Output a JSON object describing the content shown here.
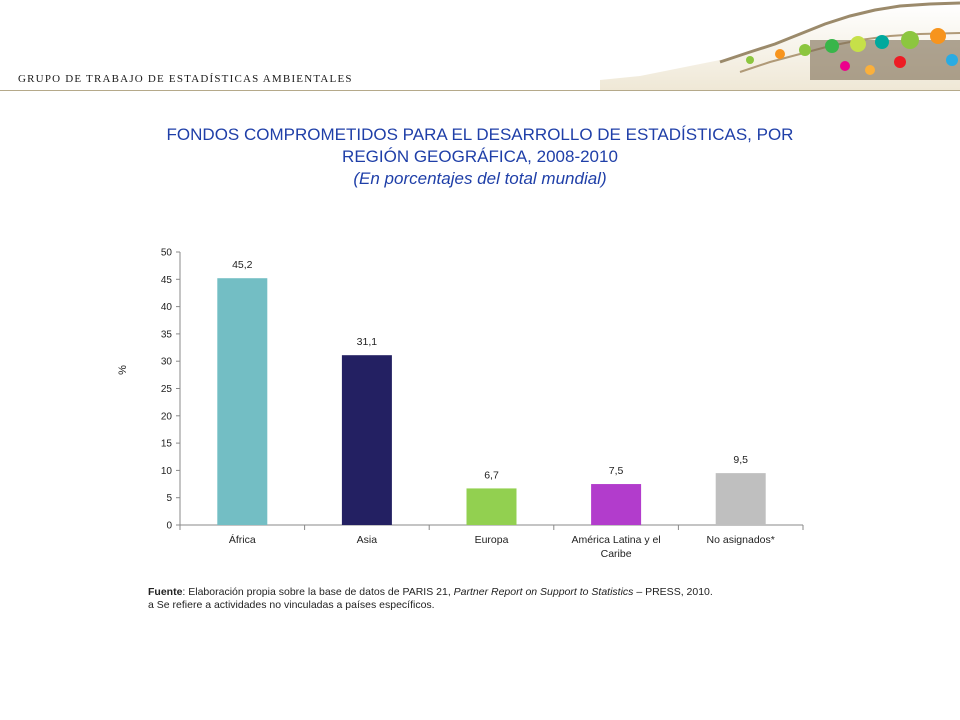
{
  "header": {
    "text": "GRUPO DE TRABAJO DE ESTADÍSTICAS AMBIENTALES"
  },
  "title": {
    "line1": "FONDOS COMPROMETIDOS PARA EL DESARROLLO DE ESTADÍSTICAS, POR",
    "line2": "REGIÓN GEOGRÁFICA, 2008-2010",
    "line3": "(En porcentajes del total mundial)"
  },
  "chart_data": {
    "type": "bar",
    "categories": [
      "África",
      "Asia",
      "Europa",
      "América Latina y el Caribe",
      "No asignados*"
    ],
    "category_lines": [
      [
        "África"
      ],
      [
        "Asia"
      ],
      [
        "Europa"
      ],
      [
        "América Latina y el",
        "Caribe"
      ],
      [
        "No asignados*"
      ]
    ],
    "values": [
      45.2,
      31.1,
      6.7,
      7.5,
      9.5
    ],
    "value_labels": [
      "45,2",
      "31,1",
      "6,7",
      "7,5",
      "9,5"
    ],
    "colors": [
      "#73bec4",
      "#232062",
      "#92d050",
      "#b23ccc",
      "#bfbfbf"
    ],
    "ylabel": "%",
    "ylim": [
      0,
      50
    ],
    "yticks": [
      0,
      5,
      10,
      15,
      20,
      25,
      30,
      35,
      40,
      45,
      50
    ],
    "grid": false,
    "legend": "none"
  },
  "source": {
    "label": "Fuente",
    "text1": ": Elaboración propia sobre la base de datos de PARIS 21, ",
    "italic": "Partner Report on Support to Statistics",
    "text2": " – PRESS, 2010.",
    "note": "a Se refiere a actividades no vinculadas a países específicos."
  }
}
